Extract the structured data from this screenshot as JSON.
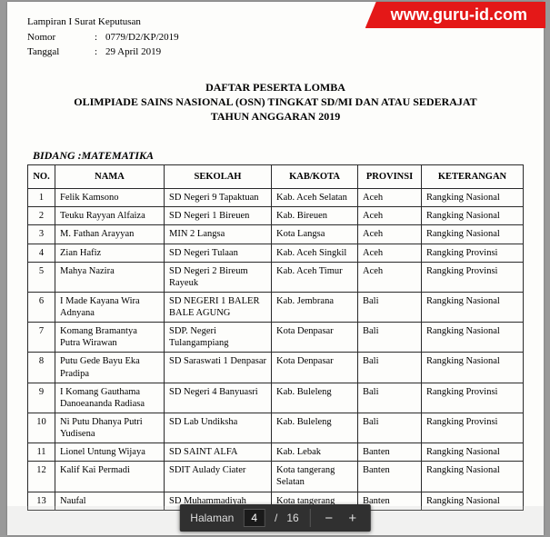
{
  "watermark": "www.guru-id.com",
  "meta": {
    "lampiran_label": "Lampiran I Surat Keputusan",
    "nomor_label": "Nomor",
    "nomor_value": "0779/D2/KP/2019",
    "tanggal_label": "Tanggal",
    "tanggal_value": "29 April 2019"
  },
  "title": {
    "line1": "DAFTAR PESERTA LOMBA",
    "line2": "OLIMPIADE SAINS NASIONAL (OSN) TINGKAT SD/MI DAN ATAU SEDERAJAT",
    "line3": "TAHUN ANGGARAN 2019"
  },
  "bidang_label": "BIDANG :MATEMATIKA",
  "table": {
    "headers": {
      "no": "NO.",
      "nama": "NAMA",
      "sekolah": "SEKOLAH",
      "kabkota": "KAB/KOTA",
      "provinsi": "PROVINSI",
      "keterangan": "KETERANGAN"
    },
    "rows": [
      {
        "no": "1",
        "nama": "Felik Kamsono",
        "sekolah": "SD Negeri 9 Tapaktuan",
        "kab": "Kab. Aceh Selatan",
        "prov": "Aceh",
        "ket": "Rangking Nasional"
      },
      {
        "no": "2",
        "nama": "Teuku Rayyan Alfaiza",
        "sekolah": "SD Negeri 1 Bireuen",
        "kab": "Kab. Bireuen",
        "prov": "Aceh",
        "ket": "Rangking Nasional"
      },
      {
        "no": "3",
        "nama": "M. Fathan Arayyan",
        "sekolah": "MIN 2 Langsa",
        "kab": "Kota Langsa",
        "prov": "Aceh",
        "ket": "Rangking Nasional"
      },
      {
        "no": "4",
        "nama": "Zian Hafiz",
        "sekolah": "SD Negeri Tulaan",
        "kab": "Kab. Aceh Singkil",
        "prov": "Aceh",
        "ket": "Rangking Provinsi"
      },
      {
        "no": "5",
        "nama": "Mahya Nazira",
        "sekolah": "SD Negeri 2 Bireum Rayeuk",
        "kab": "Kab. Aceh Timur",
        "prov": "Aceh",
        "ket": "Rangking Provinsi"
      },
      {
        "no": "6",
        "nama": "I Made Kayana Wira Adnyana",
        "sekolah": "SD NEGERI 1 BALER BALE AGUNG",
        "kab": "Kab. Jembrana",
        "prov": "Bali",
        "ket": "Rangking Nasional"
      },
      {
        "no": "7",
        "nama": "Komang Bramantya Putra Wirawan",
        "sekolah": "SDP. Negeri Tulangampiang",
        "kab": "Kota Denpasar",
        "prov": "Bali",
        "ket": "Rangking Nasional"
      },
      {
        "no": "8",
        "nama": "Putu Gede Bayu Eka Pradipa",
        "sekolah": "SD Saraswati 1 Denpasar",
        "kab": "Kota Denpasar",
        "prov": "Bali",
        "ket": "Rangking Nasional"
      },
      {
        "no": "9",
        "nama": "I Komang Gauthama Danoeananda Radiasa",
        "sekolah": "SD Negeri 4 Banyuasri",
        "kab": "Kab. Buleleng",
        "prov": "Bali",
        "ket": "Rangking Provinsi"
      },
      {
        "no": "10",
        "nama": "Ni Putu Dhanya Putri Yudisena",
        "sekolah": "SD Lab Undiksha",
        "kab": "Kab. Buleleng",
        "prov": "Bali",
        "ket": "Rangking Provinsi"
      },
      {
        "no": "11",
        "nama": "Lionel Untung Wijaya",
        "sekolah": "SD SAINT ALFA",
        "kab": "Kab. Lebak",
        "prov": "Banten",
        "ket": "Rangking Nasional"
      },
      {
        "no": "12",
        "nama": "Kalif Kai Permadi",
        "sekolah": "SDIT Aulady Ciater",
        "kab": "Kota tangerang Selatan",
        "prov": "Banten",
        "ket": "Rangking Nasional"
      },
      {
        "no": "13",
        "nama": "Naufal",
        "sekolah": "SD Muhammadiyah",
        "kab": "Kota tangerang",
        "prov": "Banten",
        "ket": "Rangking Nasional"
      }
    ]
  },
  "pdf_toolbar": {
    "page_label": "Halaman",
    "current_page": "4",
    "separator": "/",
    "total_pages": "16",
    "zoom_out": "−",
    "zoom_in": "+"
  },
  "style": {
    "watermark_bg": "#e41818",
    "watermark_text": "#ffffff",
    "border_color": "#2a2a2a",
    "paper_bg": "#fdfdfb",
    "pdf_bar_bg": "#303030"
  }
}
